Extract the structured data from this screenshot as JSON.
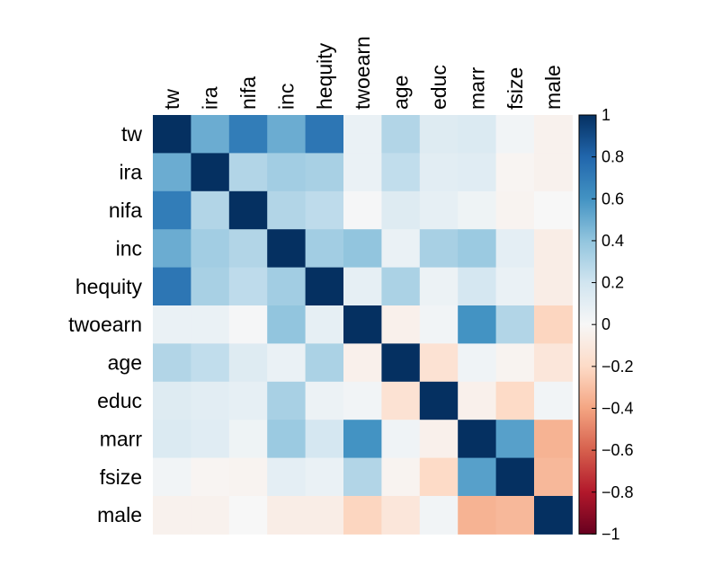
{
  "chart_data": {
    "type": "heatmap",
    "title": "",
    "variables": [
      "tw",
      "ira",
      "nifa",
      "inc",
      "hequity",
      "twoearn",
      "age",
      "educ",
      "marr",
      "fsize",
      "male"
    ],
    "matrix": [
      [
        1.0,
        0.5,
        0.7,
        0.5,
        0.73,
        0.07,
        0.3,
        0.13,
        0.15,
        0.03,
        -0.04
      ],
      [
        0.5,
        1.0,
        0.3,
        0.35,
        0.33,
        0.07,
        0.25,
        0.11,
        0.12,
        -0.02,
        -0.04
      ],
      [
        0.7,
        0.3,
        1.0,
        0.3,
        0.26,
        0.01,
        0.13,
        0.09,
        0.05,
        -0.03,
        0.0
      ],
      [
        0.5,
        0.35,
        0.3,
        1.0,
        0.35,
        0.4,
        0.07,
        0.33,
        0.37,
        0.1,
        -0.07
      ],
      [
        0.73,
        0.33,
        0.26,
        0.35,
        1.0,
        0.09,
        0.32,
        0.06,
        0.18,
        0.07,
        -0.07
      ],
      [
        0.07,
        0.07,
        0.01,
        0.4,
        0.09,
        1.0,
        -0.05,
        0.03,
        0.6,
        0.3,
        -0.22
      ],
      [
        0.3,
        0.25,
        0.13,
        0.07,
        0.32,
        -0.05,
        1.0,
        -0.15,
        0.04,
        -0.03,
        -0.12
      ],
      [
        0.13,
        0.11,
        0.09,
        0.33,
        0.06,
        0.03,
        -0.15,
        1.0,
        -0.05,
        -0.2,
        0.03
      ],
      [
        0.15,
        0.12,
        0.05,
        0.37,
        0.18,
        0.6,
        0.04,
        -0.05,
        1.0,
        0.55,
        -0.35
      ],
      [
        0.03,
        -0.02,
        -0.03,
        0.1,
        0.07,
        0.3,
        -0.03,
        -0.2,
        0.55,
        1.0,
        -0.33
      ],
      [
        -0.04,
        -0.04,
        0.0,
        -0.07,
        -0.07,
        -0.22,
        -0.12,
        0.03,
        -0.35,
        -0.33,
        1.0
      ]
    ],
    "color_scale": {
      "min": -1,
      "max": 1,
      "low_color": "#67001f",
      "mid_color": "#f7f7f7",
      "high_color": "#053061",
      "palette": "RdBu"
    },
    "colorbar_ticks": [
      "1",
      "0.8",
      "0.6",
      "0.4",
      "0.2",
      "0",
      "−0.2",
      "−0.4",
      "−0.6",
      "−0.8",
      "−1"
    ],
    "colorbar_tick_values": [
      1,
      0.8,
      0.6,
      0.4,
      0.2,
      0,
      -0.2,
      -0.4,
      -0.6,
      -0.8,
      -1
    ],
    "legend_position": "right",
    "grid": false
  }
}
